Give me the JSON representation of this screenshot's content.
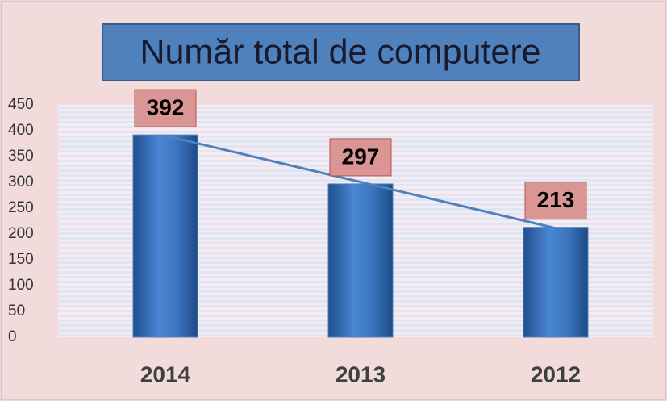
{
  "chart_data": {
    "type": "bar",
    "title": "Număr total de computere",
    "categories": [
      "2014",
      "2013",
      "2012"
    ],
    "values": [
      392,
      297,
      213
    ],
    "color": "#4f81bd",
    "ylim": [
      0,
      450
    ],
    "yticks": [
      0,
      50,
      100,
      150,
      200,
      250,
      300,
      350,
      400,
      450
    ],
    "trendline": true,
    "data_labels": true
  }
}
